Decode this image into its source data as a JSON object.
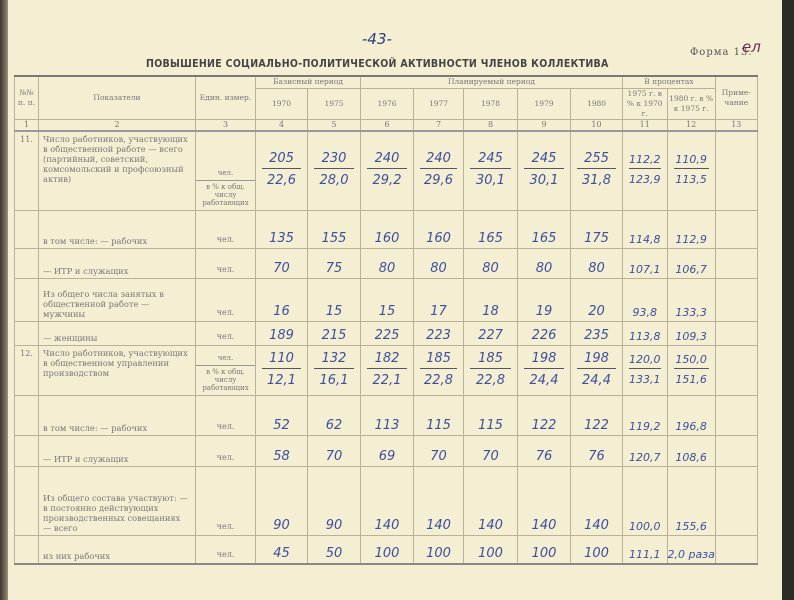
{
  "page_number": "-43-",
  "form_label": "Форма 13.",
  "form_mark": "ел",
  "title": "ПОВЫШЕНИЕ СОЦИАЛЬНО-ПОЛИТИЧЕСКОЙ  АКТИВНОСТИ ЧЛЕНОВ КОЛЛЕКТИВА",
  "header": {
    "num": "№№ п. п.",
    "indicators": "Показатели",
    "unit": "Един. измер.",
    "base_period": "Базисный период",
    "planned_period": "Планируемый период",
    "percent": "В процентах",
    "note": "Приме- чание",
    "years": [
      "1970",
      "1975",
      "1976",
      "1977",
      "1978",
      "1979",
      "1980"
    ],
    "pct_cols": [
      "1975 г. в % к 1970 г.",
      "1980 г. в % к 1975 г."
    ],
    "col_numbers": [
      "1",
      "2",
      "3",
      "4",
      "5",
      "6",
      "7",
      "8",
      "9",
      "10",
      "11",
      "12",
      "13"
    ]
  },
  "rows": [
    {
      "num": "11.",
      "label": "Число работников, участвующих в общественной работе — всего (партийный, советский, комсомольский и профсоюзный актив)",
      "unit_top": "чел.",
      "unit_bottom": "в % к общ. числу работающих",
      "top": [
        "205",
        "230",
        "240",
        "240",
        "245",
        "245",
        "255",
        "112,2",
        "110,9"
      ],
      "bottom": [
        "22,6",
        "28,0",
        "29,2",
        "29,6",
        "30,1",
        "30,1",
        "31,8",
        "123,9",
        "113,5"
      ]
    },
    {
      "num": "",
      "label": "в том числе: — рабочих",
      "unit": "чел.",
      "values": [
        "135",
        "155",
        "160",
        "160",
        "165",
        "165",
        "175",
        "114,8",
        "112,9"
      ]
    },
    {
      "num": "",
      "label": "— ИТР и служащих",
      "unit": "чел.",
      "values": [
        "70",
        "75",
        "80",
        "80",
        "80",
        "80",
        "80",
        "107,1",
        "106,7"
      ]
    },
    {
      "num": "",
      "label": "Из общего числа занятых в общественной работе — мужчины",
      "unit": "чел.",
      "values": [
        "16",
        "15",
        "15",
        "17",
        "18",
        "19",
        "20",
        "93,8",
        "133,3"
      ]
    },
    {
      "num": "",
      "label": "— женщины",
      "unit": "чел.",
      "values": [
        "189",
        "215",
        "225",
        "223",
        "227",
        "226",
        "235",
        "113,8",
        "109,3"
      ]
    },
    {
      "num": "12.",
      "label": "Число работников, участвующих в общественном управлении производством",
      "unit_top": "чел.",
      "unit_bottom": "в % к общ. числу работающих",
      "top": [
        "110",
        "132",
        "182",
        "185",
        "185",
        "198",
        "198",
        "120,0",
        "150,0"
      ],
      "bottom": [
        "12,1",
        "16,1",
        "22,1",
        "22,8",
        "22,8",
        "24,4",
        "24,4",
        "133,1",
        "151,6"
      ]
    },
    {
      "num": "",
      "label": "в том числе: — рабочих",
      "unit": "чел.",
      "values": [
        "52",
        "62",
        "113",
        "115",
        "115",
        "122",
        "122",
        "119,2",
        "196,8"
      ]
    },
    {
      "num": "",
      "label": "— ИТР и служащих",
      "unit": "чел.",
      "values": [
        "58",
        "70",
        "69",
        "70",
        "70",
        "76",
        "76",
        "120,7",
        "108,6"
      ]
    },
    {
      "num": "",
      "label": "Из общего состава участвуют: — в постоянно действующих производственных совещаниях — всего",
      "unit": "чел.",
      "values": [
        "90",
        "90",
        "140",
        "140",
        "140",
        "140",
        "140",
        "100,0",
        "155,6"
      ]
    },
    {
      "num": "",
      "label": "из них рабочих",
      "unit": "чел.",
      "values": [
        "45",
        "50",
        "100",
        "100",
        "100",
        "100",
        "100",
        "111,1",
        "2,0 раза"
      ]
    }
  ]
}
